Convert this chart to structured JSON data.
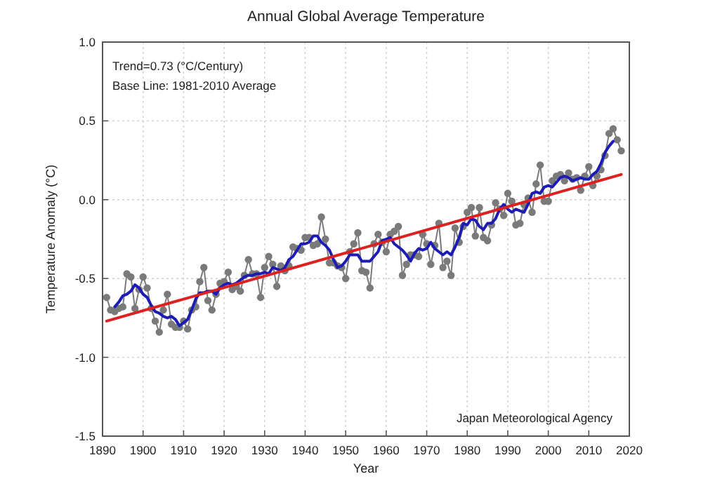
{
  "chart_data": {
    "type": "line",
    "title": "Annual Global Average Temperature",
    "xlabel": "Year",
    "ylabel": "Temperature Anomaly (°C)",
    "annotations": [
      "Trend=0.73 (°C/Century)",
      "Base Line: 1981-2010 Average",
      "Japan Meteorological Agency"
    ],
    "xlim": [
      1890,
      2020
    ],
    "xticks": [
      1890,
      1900,
      1910,
      1920,
      1930,
      1940,
      1950,
      1960,
      1970,
      1980,
      1990,
      2000,
      2010,
      2020
    ],
    "ylim": [
      -1.5,
      1
    ],
    "yticks": [
      {
        "value": -1.5,
        "label": "-1.5"
      },
      {
        "value": -1,
        "label": "-1.0"
      },
      {
        "value": -0.5,
        "label": "-0.5"
      },
      {
        "value": 0,
        "label": "0.0"
      },
      {
        "value": 0.5,
        "label": "0.5"
      },
      {
        "value": 1,
        "label": "1.0"
      }
    ],
    "grid": true,
    "x": [
      1891,
      1892,
      1893,
      1894,
      1895,
      1896,
      1897,
      1898,
      1899,
      1900,
      1901,
      1902,
      1903,
      1904,
      1905,
      1906,
      1907,
      1908,
      1909,
      1910,
      1911,
      1912,
      1913,
      1914,
      1915,
      1916,
      1917,
      1918,
      1919,
      1920,
      1921,
      1922,
      1923,
      1924,
      1925,
      1926,
      1927,
      1928,
      1929,
      1930,
      1931,
      1932,
      1933,
      1934,
      1935,
      1936,
      1937,
      1938,
      1939,
      1940,
      1941,
      1942,
      1943,
      1944,
      1945,
      1946,
      1947,
      1948,
      1949,
      1950,
      1951,
      1952,
      1953,
      1954,
      1955,
      1956,
      1957,
      1958,
      1959,
      1960,
      1961,
      1962,
      1963,
      1964,
      1965,
      1966,
      1967,
      1968,
      1969,
      1970,
      1971,
      1972,
      1973,
      1974,
      1975,
      1976,
      1977,
      1978,
      1979,
      1980,
      1981,
      1982,
      1983,
      1984,
      1985,
      1986,
      1987,
      1988,
      1989,
      1990,
      1991,
      1992,
      1993,
      1994,
      1995,
      1996,
      1997,
      1998,
      1999,
      2000,
      2001,
      2002,
      2003,
      2004,
      2005,
      2006,
      2007,
      2008,
      2009,
      2010,
      2011,
      2012,
      2013,
      2014,
      2015,
      2016,
      2017,
      2018
    ],
    "series": [
      {
        "color": "#7a7a7a",
        "marker": "circle",
        "values": [
          -0.62,
          -0.7,
          -0.71,
          -0.69,
          -0.68,
          -0.47,
          -0.49,
          -0.69,
          -0.57,
          -0.49,
          -0.56,
          -0.69,
          -0.77,
          -0.84,
          -0.7,
          -0.6,
          -0.79,
          -0.81,
          -0.81,
          -0.77,
          -0.82,
          -0.7,
          -0.68,
          -0.52,
          -0.43,
          -0.64,
          -0.7,
          -0.6,
          -0.53,
          -0.52,
          -0.46,
          -0.57,
          -0.55,
          -0.58,
          -0.48,
          -0.38,
          -0.47,
          -0.47,
          -0.62,
          -0.43,
          -0.36,
          -0.41,
          -0.55,
          -0.42,
          -0.45,
          -0.42,
          -0.3,
          -0.31,
          -0.32,
          -0.24,
          -0.24,
          -0.29,
          -0.28,
          -0.11,
          -0.25,
          -0.4,
          -0.4,
          -0.42,
          -0.43,
          -0.5,
          -0.33,
          -0.28,
          -0.21,
          -0.45,
          -0.46,
          -0.56,
          -0.28,
          -0.22,
          -0.27,
          -0.33,
          -0.22,
          -0.2,
          -0.17,
          -0.48,
          -0.41,
          -0.35,
          -0.35,
          -0.36,
          -0.22,
          -0.28,
          -0.41,
          -0.29,
          -0.15,
          -0.43,
          -0.39,
          -0.48,
          -0.18,
          -0.27,
          -0.17,
          -0.08,
          -0.05,
          -0.23,
          -0.05,
          -0.24,
          -0.26,
          -0.16,
          -0.02,
          -0.06,
          -0.1,
          0.04,
          -0.01,
          -0.16,
          -0.15,
          -0.03,
          0.01,
          -0.08,
          0.1,
          0.22,
          -0.01,
          -0.01,
          0.12,
          0.15,
          0.16,
          0.12,
          0.17,
          0.13,
          0.14,
          0.06,
          0.15,
          0.21,
          0.09,
          0.15,
          0.19,
          0.28,
          0.42,
          0.45,
          0.38,
          0.31
        ]
      },
      {
        "color": "#1c1cb4",
        "marker": "none",
        "x": [
          1893,
          1894,
          1895,
          1896,
          1897,
          1898,
          1899,
          1900,
          1901,
          1902,
          1903,
          1904,
          1905,
          1906,
          1907,
          1908,
          1909,
          1910,
          1911,
          1912,
          1913,
          1914,
          1915,
          1916,
          1917,
          1918,
          1919,
          1920,
          1921,
          1922,
          1923,
          1924,
          1925,
          1926,
          1927,
          1928,
          1929,
          1930,
          1931,
          1932,
          1933,
          1934,
          1935,
          1936,
          1937,
          1938,
          1939,
          1940,
          1941,
          1942,
          1943,
          1944,
          1945,
          1946,
          1947,
          1948,
          1949,
          1950,
          1951,
          1952,
          1953,
          1954,
          1955,
          1956,
          1957,
          1958,
          1959,
          1960,
          1961,
          1962,
          1963,
          1964,
          1965,
          1966,
          1967,
          1968,
          1969,
          1970,
          1971,
          1972,
          1973,
          1974,
          1975,
          1976,
          1977,
          1978,
          1979,
          1980,
          1981,
          1982,
          1983,
          1984,
          1985,
          1986,
          1987,
          1988,
          1989,
          1990,
          1991,
          1992,
          1993,
          1994,
          1995,
          1996,
          1997,
          1998,
          1999,
          2000,
          2001,
          2002,
          2003,
          2004,
          2005,
          2006,
          2007,
          2008,
          2009,
          2010,
          2011,
          2012,
          2013,
          2014,
          2015,
          2016
        ],
        "values": [
          -0.68,
          -0.65,
          -0.61,
          -0.6,
          -0.58,
          -0.54,
          -0.56,
          -0.6,
          -0.62,
          -0.67,
          -0.71,
          -0.72,
          -0.74,
          -0.75,
          -0.74,
          -0.76,
          -0.8,
          -0.78,
          -0.76,
          -0.7,
          -0.63,
          -0.59,
          -0.59,
          -0.58,
          -0.58,
          -0.6,
          -0.56,
          -0.54,
          -0.53,
          -0.54,
          -0.53,
          -0.51,
          -0.49,
          -0.48,
          -0.48,
          -0.47,
          -0.47,
          -0.46,
          -0.47,
          -0.43,
          -0.44,
          -0.45,
          -0.43,
          -0.38,
          -0.36,
          -0.32,
          -0.28,
          -0.28,
          -0.27,
          -0.23,
          -0.23,
          -0.27,
          -0.29,
          -0.32,
          -0.38,
          -0.43,
          -0.42,
          -0.39,
          -0.35,
          -0.35,
          -0.35,
          -0.39,
          -0.39,
          -0.39,
          -0.36,
          -0.33,
          -0.26,
          -0.25,
          -0.24,
          -0.28,
          -0.3,
          -0.32,
          -0.35,
          -0.39,
          -0.34,
          -0.31,
          -0.32,
          -0.31,
          -0.27,
          -0.31,
          -0.33,
          -0.35,
          -0.33,
          -0.35,
          -0.3,
          -0.24,
          -0.15,
          -0.16,
          -0.12,
          -0.13,
          -0.17,
          -0.19,
          -0.15,
          -0.15,
          -0.12,
          -0.06,
          -0.03,
          -0.06,
          -0.08,
          -0.06,
          -0.07,
          -0.08,
          -0.03,
          0.04,
          0.05,
          0.04,
          0.08,
          0.09,
          0.08,
          0.11,
          0.14,
          0.15,
          0.14,
          0.12,
          0.13,
          0.14,
          0.13,
          0.13,
          0.16,
          0.18,
          0.23,
          0.3,
          0.34,
          0.37
        ]
      },
      {
        "color": "#dd2020",
        "marker": "none",
        "x": [
          1891,
          2018
        ],
        "values": [
          -0.77,
          0.16
        ]
      }
    ]
  }
}
